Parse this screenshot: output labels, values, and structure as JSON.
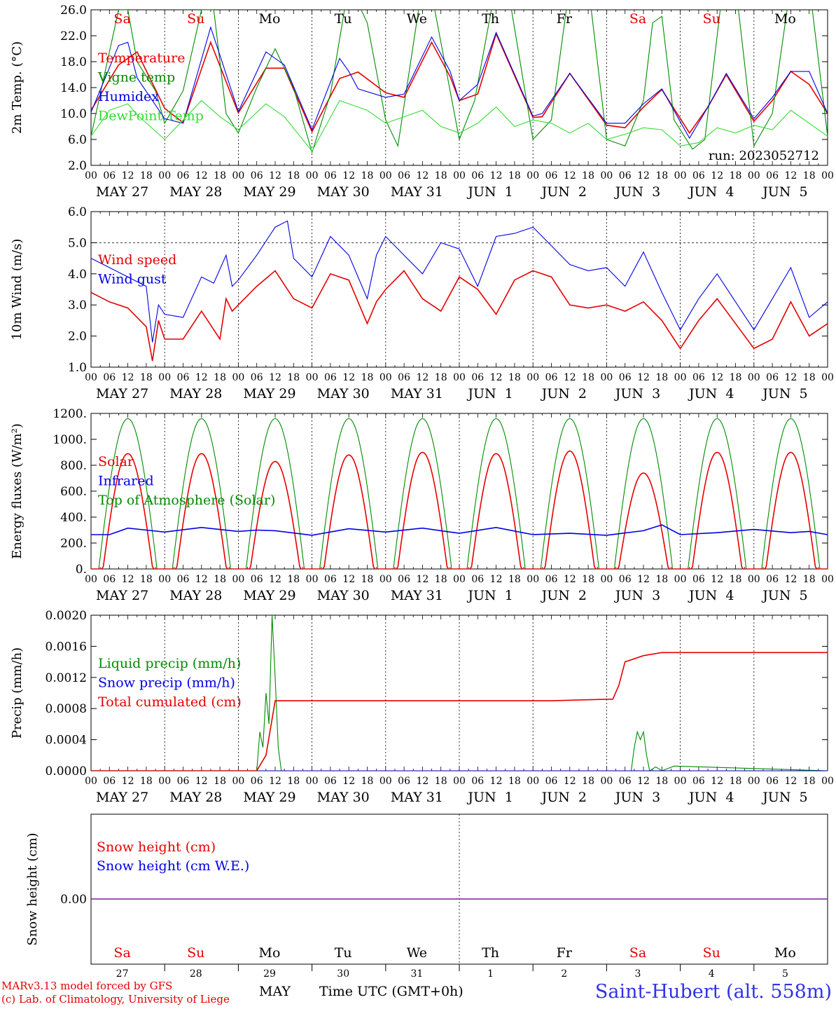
{
  "run_label": "run: 2023052712",
  "hour_labels": [
    "00",
    "06",
    "12",
    "18"
  ],
  "last_hour_label": "00",
  "date_labels": [
    "MAY 27",
    "MAY 28",
    "MAY 29",
    "MAY 30",
    "MAY 31",
    "JUN  1",
    "JUN  2",
    "JUN  3",
    "JUN  4",
    "JUN  5"
  ],
  "weekday_labels": [
    "Sa",
    "Su",
    "Mo",
    "Tu",
    "We",
    "Th",
    "Fr",
    "Sa",
    "Su",
    "Mo"
  ],
  "weekend_flags": [
    true,
    true,
    false,
    false,
    false,
    false,
    false,
    true,
    true,
    false
  ],
  "day_numbers": [
    "27",
    "28",
    "29",
    "30",
    "31",
    "1",
    "2",
    "3",
    "4",
    "5"
  ],
  "month_labels": {
    "may": "MAY",
    "jun": "JUN"
  },
  "footer": {
    "model": "MARv3.13 model forced by GFS",
    "credit": "(c) Lab. of Climatology, University of Liege",
    "time_label": "Time UTC (GMT+0h)",
    "station": "Saint-Hubert (alt. 558m)"
  },
  "colors": {
    "red": "#e60000",
    "blue": "#0000e6",
    "green": "#008c00",
    "lime": "#33dd33",
    "purple": "#7a1aa0",
    "text": "#000000"
  },
  "chart_data": [
    {
      "type": "line",
      "ylabel": "2m Temp. (°C)",
      "ylim": [
        2,
        26
      ],
      "yticks": [
        "2.0",
        "6.0",
        "10.0",
        "14.0",
        "18.0",
        "22.0",
        "26.0"
      ],
      "x_unit": "hours since 2023-05-27 00 UTC",
      "xlim": [
        0,
        240
      ],
      "series": [
        {
          "name": "Temperature",
          "color": "red",
          "x": [
            0,
            9,
            15,
            24,
            30,
            39,
            48,
            57,
            63,
            72,
            81,
            87,
            96,
            102,
            111,
            117,
            120,
            126,
            132,
            144,
            147,
            156,
            168,
            174,
            180,
            186,
            195,
            201,
            207,
            216,
            222,
            228,
            234,
            240
          ],
          "values": [
            10.5,
            17.5,
            19.5,
            10.8,
            8.6,
            21,
            10.1,
            17,
            17,
            7.2,
            15.4,
            16.4,
            13.2,
            12.5,
            21,
            15.7,
            12,
            13,
            22.3,
            9.4,
            9.5,
            16.2,
            8.2,
            7.8,
            11,
            13.7,
            7,
            11,
            16,
            8.8,
            12,
            16.5,
            14.5,
            10
          ]
        },
        {
          "name": "Vigne temp",
          "color": "green",
          "x": [
            0,
            9,
            12,
            15,
            21,
            24,
            30,
            36,
            40,
            44,
            48,
            54,
            60,
            66,
            72,
            78,
            84,
            90,
            96,
            100,
            108,
            112,
            120,
            125,
            132,
            137,
            144,
            150,
            156,
            162,
            168,
            174,
            180,
            183,
            186,
            190,
            196,
            200,
            206,
            210,
            216,
            222,
            228,
            234,
            240
          ],
          "values": [
            6.5,
            26,
            26,
            18,
            13.5,
            8.5,
            13.5,
            26,
            26,
            10,
            7,
            14,
            20,
            14,
            4,
            13,
            30,
            24,
            9,
            5,
            30,
            26,
            6,
            12,
            30,
            26,
            6,
            9,
            30,
            30,
            6,
            5,
            12,
            24,
            25,
            9,
            4.5,
            6,
            30,
            30,
            5,
            10,
            30,
            30,
            6.5
          ]
        },
        {
          "name": "Humidex",
          "color": "blue",
          "x": [
            0,
            9,
            12,
            15,
            24,
            30,
            39,
            42,
            48,
            57,
            63,
            72,
            81,
            84,
            87,
            96,
            102,
            111,
            117,
            120,
            126,
            132,
            144,
            147,
            156,
            168,
            174,
            180,
            186,
            195,
            201,
            207,
            216,
            222,
            228,
            234,
            240
          ],
          "values": [
            10.2,
            20.5,
            21,
            15.5,
            9.2,
            8.5,
            23.3,
            19,
            10.3,
            19.5,
            17.5,
            7.5,
            18.5,
            16.5,
            13.8,
            12.5,
            13,
            21.8,
            16.5,
            12,
            14.5,
            22.5,
            9.6,
            10,
            16.2,
            8.5,
            8.5,
            11.5,
            13.8,
            6.2,
            11,
            16.2,
            9.2,
            12.5,
            16.5,
            16.5,
            10
          ]
        },
        {
          "name": "DewPoint Temp",
          "color": "lime",
          "x": [
            0,
            6,
            12,
            15,
            24,
            30,
            36,
            42,
            48,
            57,
            63,
            72,
            81,
            90,
            96,
            108,
            114,
            120,
            126,
            132,
            138,
            144,
            150,
            156,
            162,
            168,
            174,
            180,
            186,
            192,
            198,
            204,
            210,
            216,
            222,
            228,
            234,
            240
          ],
          "values": [
            6.5,
            10.5,
            11.5,
            9.8,
            6,
            9,
            12,
            9.5,
            7.5,
            11.5,
            9.5,
            4.2,
            12,
            10.5,
            8.5,
            10.5,
            8,
            7,
            8.5,
            11,
            8,
            9,
            8.5,
            7,
            8.5,
            6,
            6.8,
            7.8,
            7.5,
            5,
            5.5,
            7.8,
            7,
            8.2,
            7.5,
            10.5,
            8.5,
            6.5
          ]
        }
      ]
    },
    {
      "type": "line",
      "ylabel": "10m Wind (m/s)",
      "ylim": [
        1,
        6
      ],
      "yticks": [
        "1.0",
        "2.0",
        "3.0",
        "4.0",
        "5.0",
        "6.0"
      ],
      "reference_line": 5.0,
      "xlim": [
        0,
        240
      ],
      "series": [
        {
          "name": "Wind speed",
          "color": "red",
          "x": [
            0,
            6,
            12,
            18,
            20,
            22,
            24,
            30,
            36,
            42,
            44,
            46,
            48,
            54,
            60,
            66,
            72,
            78,
            84,
            90,
            93,
            96,
            102,
            108,
            114,
            120,
            126,
            132,
            138,
            144,
            150,
            156,
            162,
            168,
            174,
            180,
            186,
            192,
            198,
            204,
            210,
            216,
            222,
            228,
            234,
            240
          ],
          "values": [
            3.4,
            3.1,
            2.9,
            2.3,
            1.2,
            2.5,
            1.9,
            1.9,
            2.8,
            1.9,
            3.2,
            2.8,
            3,
            3.6,
            4.1,
            3.2,
            2.9,
            4,
            3.8,
            2.4,
            3.1,
            3.5,
            4.1,
            3.2,
            2.8,
            3.9,
            3.5,
            2.7,
            3.8,
            4.1,
            3.9,
            3,
            2.9,
            3,
            2.8,
            3.1,
            2.5,
            1.6,
            2.5,
            3.2,
            2.4,
            1.6,
            1.9,
            3.1,
            2,
            2.4
          ]
        },
        {
          "name": "Wind gust",
          "color": "blue",
          "x": [
            0,
            6,
            12,
            18,
            20,
            22,
            24,
            30,
            36,
            40,
            44,
            46,
            48,
            54,
            60,
            64,
            66,
            72,
            78,
            84,
            90,
            93,
            96,
            102,
            108,
            114,
            120,
            126,
            132,
            138,
            144,
            150,
            156,
            162,
            168,
            174,
            180,
            186,
            192,
            198,
            204,
            210,
            216,
            222,
            228,
            234,
            240
          ],
          "values": [
            4.5,
            4.2,
            3.9,
            3.6,
            1.8,
            3,
            2.7,
            2.6,
            3.9,
            3.7,
            4.6,
            3.6,
            3.8,
            4.6,
            5.5,
            5.7,
            4.5,
            3.9,
            5.2,
            4.6,
            3.2,
            4.6,
            5.2,
            4.6,
            4,
            5,
            4.8,
            3.6,
            5.2,
            5.3,
            5.5,
            4.9,
            4.3,
            4.1,
            4.2,
            3.6,
            4.7,
            3.4,
            2.2,
            3.2,
            4,
            3.1,
            2.2,
            3.2,
            4.2,
            2.6,
            3.1
          ]
        }
      ]
    },
    {
      "type": "line",
      "ylabel": "Energy fluxes (W/m²)",
      "ylim": [
        0,
        1200
      ],
      "yticks": [
        "0.",
        "200.",
        "400.",
        "600.",
        "800.",
        "1000.",
        "1200."
      ],
      "xlim": [
        0,
        240
      ],
      "daily_peaks": {
        "Top of Atmosphere (Solar)": [
          1160,
          1160,
          1160,
          1160,
          1160,
          1160,
          1160,
          1160,
          1160,
          1160
        ],
        "Solar": [
          890,
          890,
          830,
          880,
          900,
          890,
          910,
          740,
          900,
          900
        ]
      },
      "series": [
        {
          "name": "Solar",
          "color": "red"
        },
        {
          "name": "Infrared",
          "color": "blue",
          "x": [
            0,
            6,
            12,
            18,
            24,
            36,
            48,
            54,
            60,
            72,
            84,
            96,
            108,
            120,
            132,
            144,
            156,
            168,
            180,
            186,
            192,
            204,
            216,
            228,
            234,
            240
          ],
          "values": [
            265,
            265,
            315,
            300,
            285,
            320,
            290,
            300,
            295,
            260,
            310,
            285,
            315,
            275,
            320,
            265,
            275,
            260,
            295,
            340,
            265,
            280,
            305,
            280,
            290,
            265
          ]
        },
        {
          "name": "Top of Atmosphere (Solar)",
          "color": "green"
        }
      ]
    },
    {
      "type": "line",
      "ylabel": "Precip (mm/h)",
      "ylim": [
        0,
        0.002
      ],
      "yticks": [
        "0.0000",
        "0.0004",
        "0.0008",
        "0.0012",
        "0.0016",
        "0.0020"
      ],
      "xlim": [
        0,
        240
      ],
      "series": [
        {
          "name": "Liquid precip (mm/h)",
          "color": "green",
          "x": [
            0,
            54,
            55,
            56,
            57,
            58,
            59,
            60,
            61,
            62,
            176,
            177,
            178,
            179,
            180,
            181,
            182,
            184,
            186,
            190,
            240
          ],
          "values": [
            0,
            0,
            0.0005,
            0.0003,
            0.001,
            0.0006,
            0.002,
            0.0012,
            0.0003,
            0,
            0,
            0.0003,
            0.0005,
            0.0004,
            0.0005,
            0.0002,
            0,
            5e-05,
            0,
            6e-05,
            0
          ]
        },
        {
          "name": "Snow precip (mm/h)",
          "color": "blue",
          "x": [
            0,
            240
          ],
          "values": [
            0,
            0
          ]
        },
        {
          "name": "Total cumulated (cm)",
          "color": "red",
          "x": [
            0,
            54,
            57,
            60,
            61,
            150,
            168,
            170,
            172,
            174,
            180,
            186,
            240
          ],
          "values": [
            0,
            0,
            0.0002,
            0.0009,
            0.0009,
            0.0009,
            0.00092,
            0.00092,
            0.0011,
            0.0014,
            0.00148,
            0.00152,
            0.00152
          ]
        }
      ]
    },
    {
      "type": "line",
      "ylabel": "Snow height (cm)",
      "ytick": "0.00",
      "xlim": [
        0,
        240
      ],
      "series": [
        {
          "name": "Snow height (cm)",
          "color": "red",
          "x": [
            0,
            240
          ],
          "values": [
            0,
            0
          ]
        },
        {
          "name": "Snow height (cm W.E.)",
          "color": "blue",
          "x": [
            0,
            240
          ],
          "values": [
            0,
            0
          ]
        }
      ]
    }
  ]
}
